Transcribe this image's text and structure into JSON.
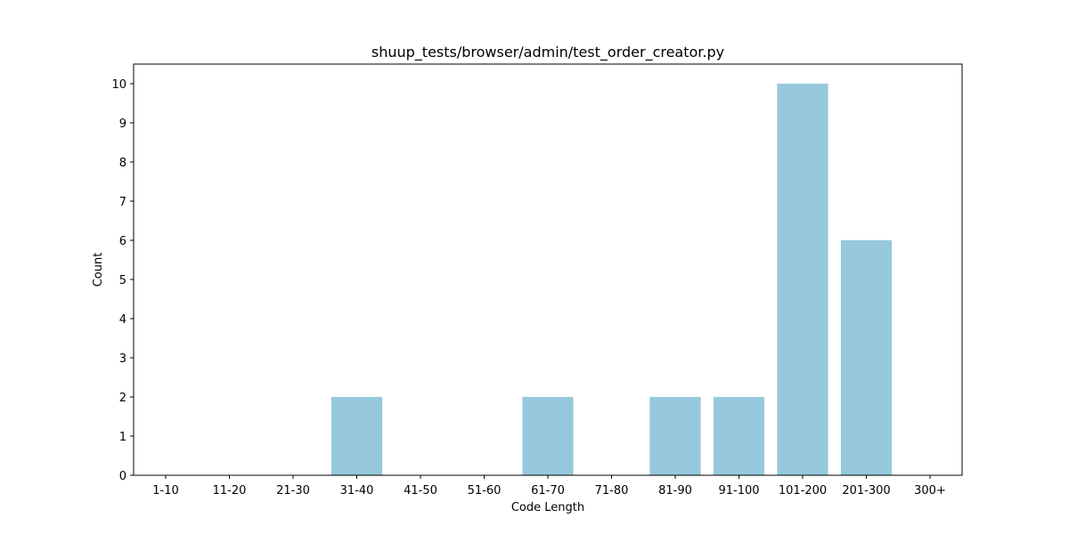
{
  "chart_data": {
    "type": "bar",
    "title": "shuup_tests/browser/admin/test_order_creator.py",
    "xlabel": "Code Length",
    "ylabel": "Count",
    "categories": [
      "1-10",
      "11-20",
      "21-30",
      "31-40",
      "41-50",
      "51-60",
      "61-70",
      "71-80",
      "81-90",
      "91-100",
      "101-200",
      "201-300",
      "300+"
    ],
    "values": [
      0,
      0,
      0,
      2,
      0,
      0,
      2,
      0,
      2,
      2,
      10,
      6,
      0
    ],
    "ylim": [
      0,
      10.5
    ],
    "yticks": [
      0,
      1,
      2,
      3,
      4,
      5,
      6,
      7,
      8,
      9,
      10
    ],
    "bar_color": "#96c9dd",
    "grid": false,
    "legend": "none"
  }
}
